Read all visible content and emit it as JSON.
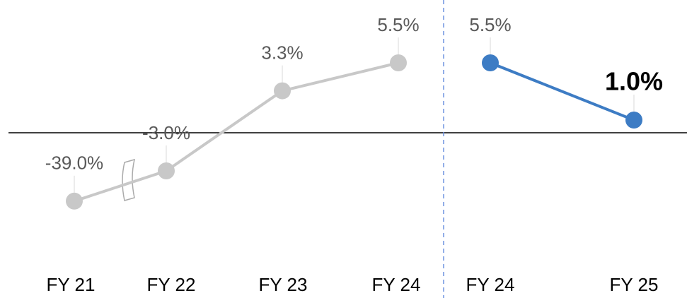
{
  "chart_data": {
    "type": "line",
    "categories": [
      "FY 21",
      "FY 22",
      "FY 23",
      "FY 24",
      "FY 24",
      "FY 25"
    ],
    "series": [
      {
        "color": "#c8c8c8",
        "values": [
          -39.0,
          -3.0,
          3.3,
          5.5,
          null,
          null
        ],
        "value_labels": [
          "-39.0%",
          "-3.0%",
          "3.3%",
          "5.5%",
          null,
          null
        ]
      },
      {
        "color": "#3d7cc4",
        "values": [
          null,
          null,
          null,
          null,
          5.5,
          1.0
        ],
        "value_labels": [
          null,
          null,
          null,
          null,
          "5.5%",
          "1.0%"
        ]
      }
    ],
    "axis_break": true
  }
}
